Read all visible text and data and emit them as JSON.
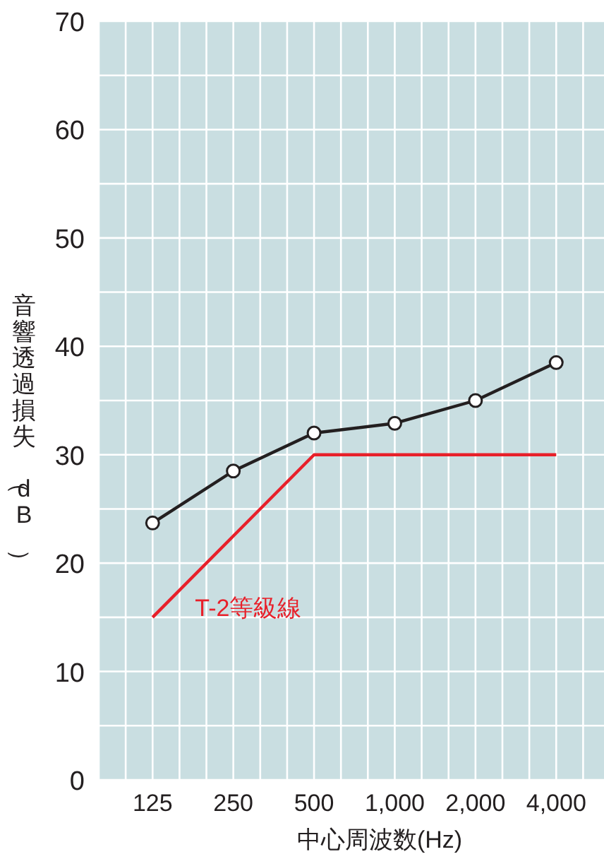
{
  "chart_data": {
    "type": "line",
    "xlabel": "中心周波数(Hz)",
    "ylabel": "音響透過損失（dB）",
    "categories": [
      "125",
      "250",
      "500",
      "1,000",
      "2,000",
      "4,000"
    ],
    "series": [
      {
        "color": "#231f20",
        "values": [
          23.7,
          28.5,
          32,
          32.9,
          35,
          38.5
        ],
        "marker": "circle"
      },
      {
        "name": "T-2等級線",
        "color": "#e8202a",
        "values": [
          15,
          22.5,
          30,
          30,
          30,
          30
        ],
        "marker": "none"
      }
    ],
    "ylim": [
      0,
      70
    ],
    "yticks": [
      0,
      {
        "value": 5,
        "label": null
      },
      10,
      {
        "value": 15,
        "label": null
      },
      20,
      {
        "value": 25,
        "label": null
      },
      30,
      {
        "value": 35,
        "label": null
      },
      40,
      {
        "value": 45,
        "label": null
      },
      50,
      {
        "value": 55,
        "label": null
      },
      60,
      {
        "value": 65,
        "label": null
      },
      70
    ],
    "grid": true
  }
}
